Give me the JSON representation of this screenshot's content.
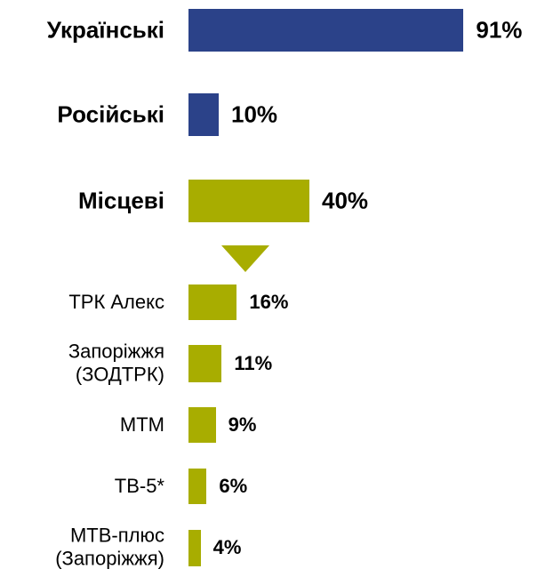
{
  "chart_data": {
    "type": "bar",
    "orientation": "horizontal",
    "categories": [
      "Українські",
      "Російські",
      "Місцеві",
      "ТРК Алекс",
      "Запоріжжя\n(ЗОДТРК)",
      "МТМ",
      "ТВ-5*",
      "МТВ-плюс\n(Запоріжжя)"
    ],
    "values": [
      91,
      10,
      40,
      16,
      11,
      9,
      6,
      4
    ],
    "value_labels": [
      "91%",
      "10%",
      "40%",
      "16%",
      "11%",
      "9%",
      "6%",
      "4%"
    ],
    "colors": [
      "#2b4289",
      "#2b4289",
      "#a8ad00",
      "#a8ad00",
      "#a8ad00",
      "#a8ad00",
      "#a8ad00",
      "#a8ad00"
    ]
  }
}
